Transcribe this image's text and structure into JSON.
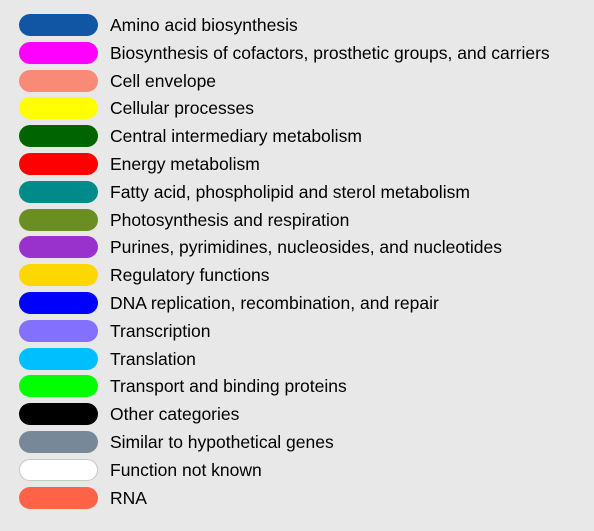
{
  "legend": {
    "items": [
      {
        "label": "Amino acid biosynthesis",
        "color": "#1155a5"
      },
      {
        "label": "Biosynthesis of cofactors, prosthetic groups, and carriers",
        "color": "#ff00ff"
      },
      {
        "label": "Cell envelope",
        "color": "#fa8a78"
      },
      {
        "label": "Cellular processes",
        "color": "#ffff00"
      },
      {
        "label": "Central intermediary metabolism",
        "color": "#006400"
      },
      {
        "label": "Energy metabolism",
        "color": "#ff0000"
      },
      {
        "label": "Fatty acid, phospholipid and sterol metabolism",
        "color": "#008b8b"
      },
      {
        "label": "Photosynthesis and respiration",
        "color": "#6b8e23"
      },
      {
        "label": "Purines, pyrimidines, nucleosides, and nucleotides",
        "color": "#9932cc"
      },
      {
        "label": "Regulatory functions",
        "color": "#ffd700"
      },
      {
        "label": "DNA replication, recombination, and repair",
        "color": "#0000ff"
      },
      {
        "label": "Transcription",
        "color": "#8470ff"
      },
      {
        "label": "Translation",
        "color": "#00bfff"
      },
      {
        "label": "Transport and binding proteins",
        "color": "#00ff00"
      },
      {
        "label": "Other categories",
        "color": "#000000"
      },
      {
        "label": "Similar to hypothetical genes",
        "color": "#778899"
      },
      {
        "label": "Function not known",
        "color": "#ffffff"
      },
      {
        "label": "RNA",
        "color": "#ff6347"
      }
    ]
  }
}
